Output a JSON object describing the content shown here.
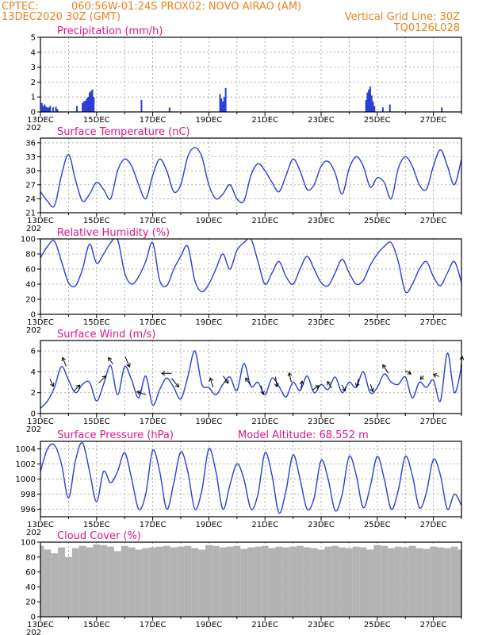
{
  "header": {
    "source": "CPTEC:",
    "location": "060:56W-01:24S   PROX02: NOVO AIRAO (AM)",
    "init_time": "13DEC2020 30Z (GMT)",
    "grid_note": "Vertical Grid Line: 30Z",
    "code": "TQ0126L028"
  },
  "x_axis": {
    "tick_labels": [
      "13DEC",
      "15DEC",
      "17DEC",
      "19DEC",
      "21DEC",
      "23DEC",
      "25DEC",
      "27DEC"
    ],
    "under_label": "202"
  },
  "colors": {
    "line": "#2a3fd6",
    "bars": "#2a3fd6",
    "cloud": "#b3b3b3",
    "title": "#e0158a",
    "header": "#e8821e",
    "grid": "#9a9a9a"
  },
  "chart_data": [
    {
      "id": "precip",
      "type": "bar",
      "title": "Precipitation (mm/h)",
      "ylim": [
        0,
        5
      ],
      "yticks": [
        0,
        1,
        2,
        3,
        4,
        5
      ],
      "grid": true,
      "x": [
        13.05,
        13.1,
        13.15,
        13.2,
        13.25,
        13.3,
        13.35,
        13.45,
        13.55,
        13.6,
        14.3,
        14.5,
        14.55,
        14.6,
        14.65,
        14.7,
        14.75,
        14.8,
        14.85,
        14.9,
        16.6,
        17.6,
        19.4,
        19.45,
        19.5,
        19.55,
        19.6,
        24.6,
        24.65,
        24.7,
        24.75,
        24.8,
        24.85,
        24.9,
        25.2,
        25.45,
        27.3
      ],
      "values": [
        0.6,
        0.4,
        0.5,
        0.35,
        0.3,
        0.3,
        0.4,
        0.3,
        0.35,
        0.2,
        0.4,
        0.6,
        0.7,
        0.75,
        0.9,
        1.0,
        1.3,
        1.4,
        1.5,
        1.0,
        0.8,
        0.3,
        1.2,
        0.9,
        0.7,
        1.0,
        1.6,
        0.8,
        1.3,
        1.5,
        1.7,
        1.1,
        0.7,
        0.4,
        0.3,
        0.5,
        0.3
      ]
    },
    {
      "id": "temp",
      "type": "line",
      "title": "Surface Temperature (nC)",
      "ylim": [
        21,
        37
      ],
      "yticks": [
        21,
        24,
        27,
        30,
        33,
        36
      ],
      "grid": true,
      "x": [
        13.0,
        13.25,
        13.5,
        13.75,
        14.0,
        14.25,
        14.5,
        14.75,
        15.0,
        15.25,
        15.5,
        15.75,
        16.0,
        16.25,
        16.5,
        16.75,
        17.0,
        17.25,
        17.5,
        17.75,
        18.0,
        18.25,
        18.5,
        18.75,
        19.0,
        19.25,
        19.5,
        19.75,
        20.0,
        20.25,
        20.5,
        20.75,
        21.0,
        21.25,
        21.5,
        21.75,
        22.0,
        22.25,
        22.5,
        22.75,
        23.0,
        23.25,
        23.5,
        23.75,
        24.0,
        24.25,
        24.5,
        24.75,
        25.0,
        25.25,
        25.5,
        25.75,
        26.0,
        26.25,
        26.5,
        26.75,
        27.0,
        27.25,
        27.5,
        27.75,
        28.0
      ],
      "values": [
        25.5,
        23.5,
        22.5,
        29,
        33.5,
        28,
        23.5,
        25,
        27.5,
        26,
        24,
        30,
        32.5,
        31,
        27,
        24,
        29,
        32.5,
        30,
        25.5,
        27,
        33,
        35,
        33,
        27,
        24,
        25,
        27,
        24,
        23.5,
        29,
        31.5,
        30,
        27.5,
        25.5,
        29,
        32.5,
        30,
        26,
        27,
        31,
        32,
        29.5,
        25,
        30.5,
        33,
        31,
        26.5,
        28.5,
        27.5,
        24,
        30.5,
        33,
        31,
        27,
        26,
        31,
        34.5,
        31,
        27,
        32.5
      ]
    },
    {
      "id": "rh",
      "type": "line",
      "title": "Relative Humidity (%)",
      "ylim": [
        0,
        100
      ],
      "yticks": [
        0,
        20,
        40,
        60,
        80,
        100
      ],
      "grid": true,
      "x": [
        13.0,
        13.25,
        13.5,
        13.75,
        14.0,
        14.25,
        14.5,
        14.75,
        15.0,
        15.25,
        15.5,
        15.75,
        16.0,
        16.25,
        16.5,
        16.75,
        17.0,
        17.25,
        17.5,
        17.75,
        18.0,
        18.25,
        18.5,
        18.75,
        19.0,
        19.25,
        19.5,
        19.75,
        20.0,
        20.25,
        20.5,
        20.75,
        21.0,
        21.25,
        21.5,
        21.75,
        22.0,
        22.25,
        22.5,
        22.75,
        23.0,
        23.25,
        23.5,
        23.75,
        24.0,
        24.25,
        24.5,
        24.75,
        25.0,
        25.25,
        25.5,
        25.75,
        26.0,
        26.25,
        26.5,
        26.75,
        27.0,
        27.25,
        27.5,
        27.75,
        28.0
      ],
      "values": [
        75,
        90,
        97,
        70,
        42,
        38,
        60,
        93,
        68,
        80,
        95,
        99,
        55,
        40,
        50,
        70,
        95,
        45,
        38,
        60,
        77,
        90,
        45,
        30,
        40,
        60,
        80,
        60,
        85,
        95,
        100,
        70,
        40,
        55,
        70,
        50,
        40,
        60,
        77,
        60,
        42,
        38,
        55,
        73,
        55,
        40,
        45,
        65,
        80,
        90,
        95,
        70,
        30,
        40,
        60,
        70,
        50,
        38,
        55,
        70,
        42
      ]
    },
    {
      "id": "wind",
      "type": "line",
      "title": "Surface Wind (m/s)",
      "ylim": [
        0,
        7
      ],
      "yticks": [
        0,
        2,
        4,
        6
      ],
      "grid": true,
      "x": [
        13.0,
        13.25,
        13.5,
        13.75,
        14.0,
        14.25,
        14.5,
        14.75,
        15.0,
        15.25,
        15.5,
        15.75,
        16.0,
        16.25,
        16.5,
        16.75,
        17.0,
        17.25,
        17.5,
        17.75,
        18.0,
        18.25,
        18.5,
        18.75,
        19.0,
        19.25,
        19.5,
        19.75,
        20.0,
        20.25,
        20.5,
        20.75,
        21.0,
        21.25,
        21.5,
        21.75,
        22.0,
        22.25,
        22.5,
        22.75,
        23.0,
        23.25,
        23.5,
        23.75,
        24.0,
        24.25,
        24.5,
        24.75,
        25.0,
        25.25,
        25.5,
        25.75,
        26.0,
        26.25,
        26.5,
        26.75,
        27.0,
        27.25,
        27.5,
        27.75,
        28.0
      ],
      "values": [
        0.5,
        1.2,
        2.5,
        4.5,
        3.2,
        2.0,
        2.8,
        3.0,
        1.2,
        2.8,
        4.6,
        1.8,
        4.5,
        3.2,
        1.5,
        3.6,
        0.8,
        2.3,
        3.4,
        2.5,
        1.4,
        3.5,
        6.0,
        2.8,
        2.5,
        1.8,
        2.8,
        3.5,
        2.2,
        4.8,
        2.6,
        3.0,
        1.8,
        3.4,
        2.6,
        1.6,
        3.0,
        2.2,
        3.6,
        2.0,
        2.8,
        2.3,
        3.5,
        2.0,
        3.0,
        2.5,
        4.0,
        2.0,
        2.5,
        3.8,
        3.0,
        2.8,
        3.5,
        1.5,
        3.0,
        2.5,
        3.2,
        1.2,
        5.8,
        2.0,
        4.5
      ],
      "arrows": {
        "x": [
          13.4,
          13.85,
          14.3,
          15.2,
          15.5,
          16.1,
          16.6,
          17.5,
          17.8,
          19.1,
          19.6,
          20.4,
          20.9,
          21.4,
          21.9,
          22.3,
          22.8,
          23.3,
          23.8,
          24.3,
          24.8,
          25.3,
          26.1,
          26.6,
          27.1,
          28.0
        ],
        "u": [
          0.5,
          -0.5,
          0.8,
          1.0,
          -0.6,
          0.6,
          -1.2,
          -1.4,
          1.0,
          -0.4,
          0.7,
          -0.7,
          0.3,
          0.2,
          -0.3,
          0.2,
          0.9,
          -0.6,
          0.5,
          -0.3,
          0.3,
          -0.8,
          0.8,
          -0.5,
          -0.8,
          0.2
        ],
        "v": [
          -1.0,
          1.2,
          0.8,
          1.0,
          0.9,
          -1.4,
          0.4,
          0,
          -1.2,
          1.3,
          -1.0,
          1.0,
          -1.2,
          -1.4,
          1.3,
          1.3,
          0.6,
          0.9,
          -0.8,
          -1.1,
          -1.0,
          1.2,
          -0.4,
          -0.5,
          0.3,
          1.5
        ]
      }
    },
    {
      "id": "pres",
      "type": "line",
      "title": "Surface Pressure (hPa)",
      "extra_label": "Model Altitude: 68.552  m",
      "ylim": [
        995,
        1005
      ],
      "yticks": [
        996,
        998,
        1000,
        1002,
        1004
      ],
      "grid": true,
      "x": [
        13.0,
        13.25,
        13.5,
        13.75,
        14.0,
        14.25,
        14.5,
        14.75,
        15.0,
        15.25,
        15.5,
        15.75,
        16.0,
        16.25,
        16.5,
        16.75,
        17.0,
        17.25,
        17.5,
        17.75,
        18.0,
        18.25,
        18.5,
        18.75,
        19.0,
        19.25,
        19.5,
        19.75,
        20.0,
        20.25,
        20.5,
        20.75,
        21.0,
        21.25,
        21.5,
        21.75,
        22.0,
        22.25,
        22.5,
        22.75,
        23.0,
        23.25,
        23.5,
        23.75,
        24.0,
        24.25,
        24.5,
        24.75,
        25.0,
        25.25,
        25.5,
        25.75,
        26.0,
        26.25,
        26.5,
        26.75,
        27.0,
        27.25,
        27.5,
        27.75,
        28.0
      ],
      "values": [
        1001,
        1004,
        1004.5,
        1002,
        997.5,
        1002.5,
        1004.8,
        1001,
        997,
        1001,
        999.5,
        1001,
        1003.5,
        1000,
        996,
        998,
        1003.8,
        1001,
        996,
        999.5,
        1003.6,
        1001,
        996,
        998.5,
        1004,
        1001,
        996,
        999.2,
        1002,
        1000,
        996,
        998,
        1003.5,
        1000.5,
        995.5,
        998.5,
        1003.2,
        1000,
        996,
        997.5,
        1002.5,
        1000,
        995.8,
        998,
        1003,
        1000.5,
        996.2,
        999,
        1003,
        1000,
        996,
        998.5,
        1003,
        1000.5,
        996.2,
        998.2,
        1002.6,
        1000.5,
        996,
        998,
        996.5
      ]
    },
    {
      "id": "cloud",
      "type": "bar",
      "title": "Cloud Cover (%)",
      "ylim": [
        0,
        100
      ],
      "yticks": [
        0,
        20,
        40,
        60,
        80,
        100
      ],
      "grid": true,
      "x": [
        13.0,
        13.25,
        13.5,
        13.75,
        14.0,
        14.25,
        14.5,
        14.75,
        15.0,
        15.25,
        15.5,
        15.75,
        16.0,
        16.25,
        16.5,
        16.75,
        17.0,
        17.25,
        17.5,
        17.75,
        18.0,
        18.25,
        18.5,
        18.75,
        19.0,
        19.25,
        19.5,
        19.75,
        20.0,
        20.25,
        20.5,
        20.75,
        21.0,
        21.25,
        21.5,
        21.75,
        22.0,
        22.25,
        22.5,
        22.75,
        23.0,
        23.25,
        23.5,
        23.75,
        24.0,
        24.25,
        24.5,
        24.75,
        25.0,
        25.25,
        25.5,
        25.75,
        26.0,
        26.25,
        26.5,
        26.75,
        27.0,
        27.25,
        27.5,
        27.75,
        28.0
      ],
      "values": [
        95,
        90,
        85,
        93,
        80,
        92,
        95,
        93,
        97,
        96,
        94,
        88,
        95,
        93,
        90,
        92,
        93,
        94,
        95,
        93,
        94,
        95,
        92,
        90,
        96,
        95,
        93,
        94,
        95,
        91,
        93,
        94,
        95,
        92,
        94,
        93,
        94,
        95,
        93,
        92,
        90,
        94,
        95,
        93,
        92,
        94,
        93,
        90,
        96,
        95,
        92,
        94,
        93,
        95,
        92,
        91,
        94,
        93,
        92,
        94,
        90
      ]
    }
  ]
}
